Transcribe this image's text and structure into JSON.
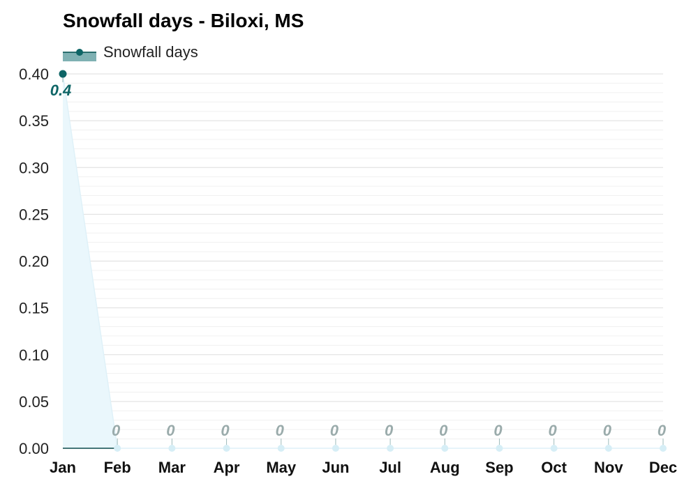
{
  "chart_data": {
    "type": "area",
    "title": "Snowfall days - Biloxi, MS",
    "xlabel": "",
    "ylabel": "",
    "categories": [
      "Jan",
      "Feb",
      "Mar",
      "Apr",
      "May",
      "Jun",
      "Jul",
      "Aug",
      "Sep",
      "Oct",
      "Nov",
      "Dec"
    ],
    "series": [
      {
        "name": "Snowfall days",
        "values": [
          0.4,
          0,
          0,
          0,
          0,
          0,
          0,
          0,
          0,
          0,
          0,
          0
        ],
        "data_labels": [
          "0.4",
          "0",
          "0",
          "0",
          "0",
          "0",
          "0",
          "0",
          "0",
          "0",
          "0",
          "0"
        ]
      }
    ],
    "ylim": [
      0,
      0.4
    ],
    "yticks": [
      "0.00",
      "0.05",
      "0.10",
      "0.15",
      "0.20",
      "0.25",
      "0.30",
      "0.35",
      "0.40"
    ],
    "grid": true,
    "legend": "top-left",
    "colors": {
      "line": "#0e6566",
      "legend_fill": "#7fb1b3",
      "area_fill": "#eaf7fc",
      "zero_marker": "#d6eef6",
      "zero_label": "#9aabab",
      "grid_major": "#dddddd",
      "grid_minor": "#f0f0f0"
    }
  }
}
